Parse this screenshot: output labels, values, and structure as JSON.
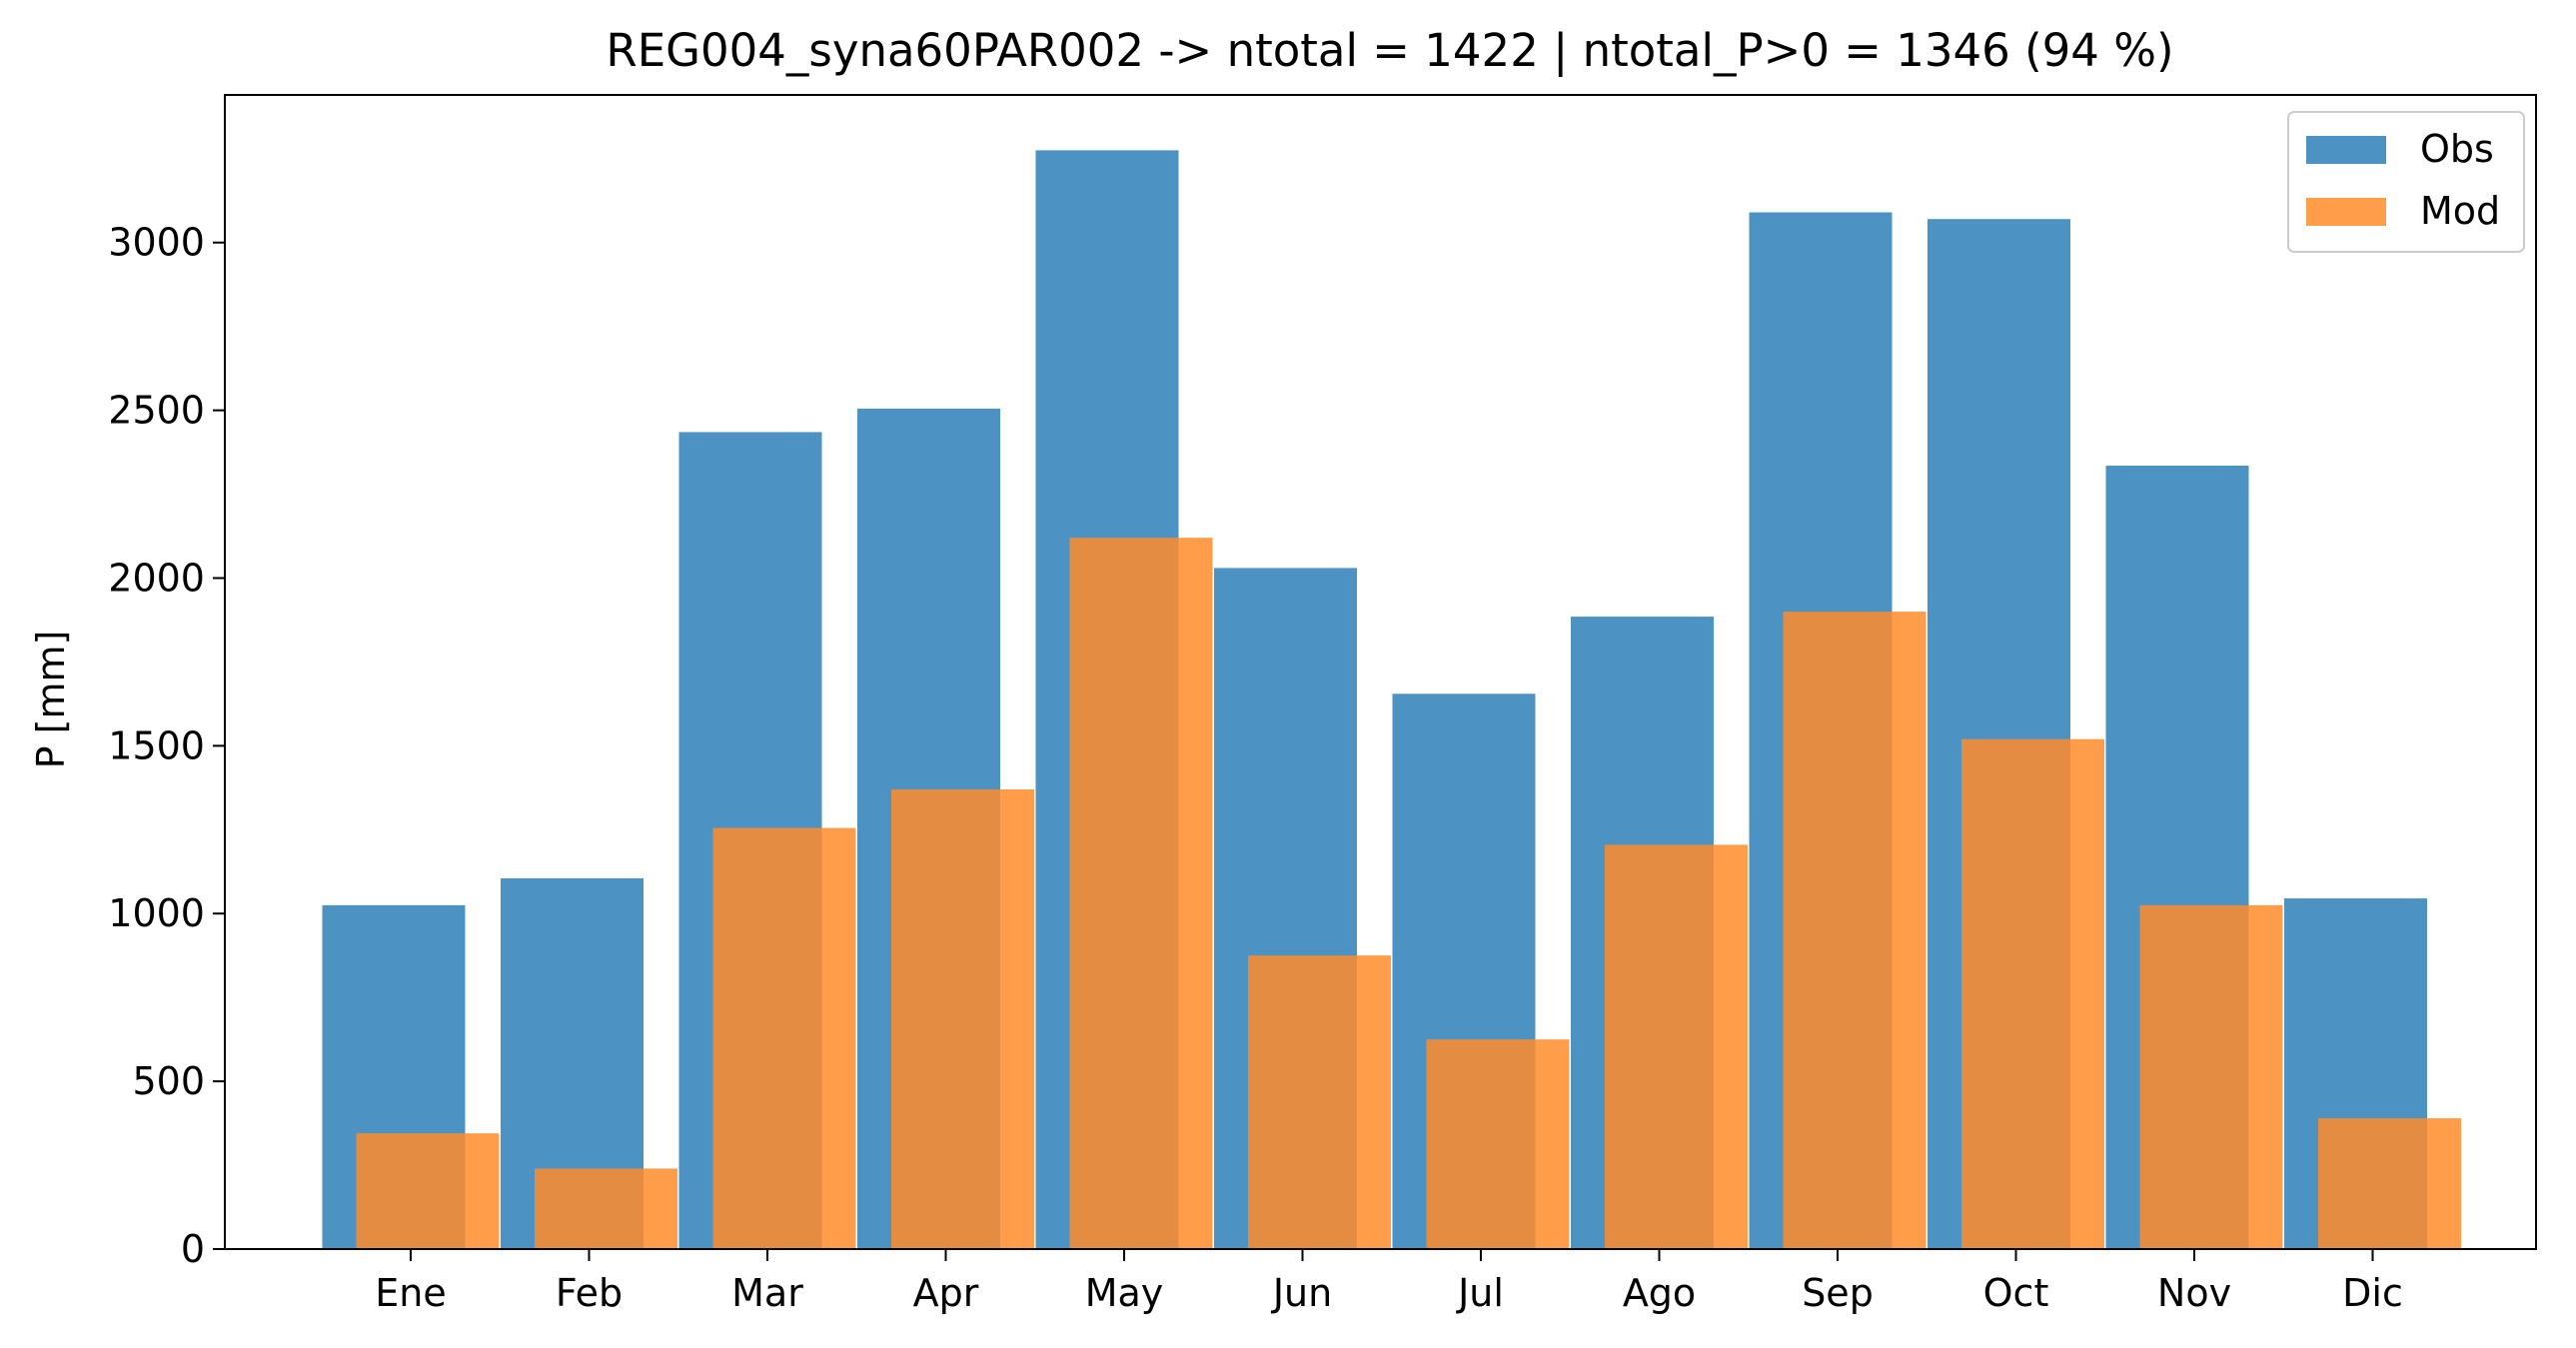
{
  "chart_data": {
    "type": "bar",
    "title": "REG004_syna60PAR002 -> ntotal = 1422 | ntotal_P>0 = 1346 (94 %)",
    "xlabel": "",
    "ylabel": "P [mm]",
    "categories": [
      "Ene",
      "Feb",
      "Mar",
      "Apr",
      "May",
      "Jun",
      "Jul",
      "Ago",
      "Sep",
      "Oct",
      "Nov",
      "Dic"
    ],
    "series": [
      {
        "name": "Obs",
        "color": "#4c92c3",
        "values": [
          1025,
          1105,
          2435,
          2505,
          3275,
          2030,
          1655,
          1885,
          3090,
          3070,
          2335,
          1045
        ]
      },
      {
        "name": "Mod",
        "color": "#ff8c2b",
        "opacity": 0.85,
        "values": [
          345,
          240,
          1255,
          1370,
          2120,
          875,
          625,
          1205,
          1900,
          1520,
          1025,
          390
        ]
      }
    ],
    "ylim": [
      0,
      3440
    ],
    "yticks": [
      0,
      500,
      1000,
      1500,
      2000,
      2500,
      3000
    ],
    "grid": false,
    "legend": "top-right"
  }
}
